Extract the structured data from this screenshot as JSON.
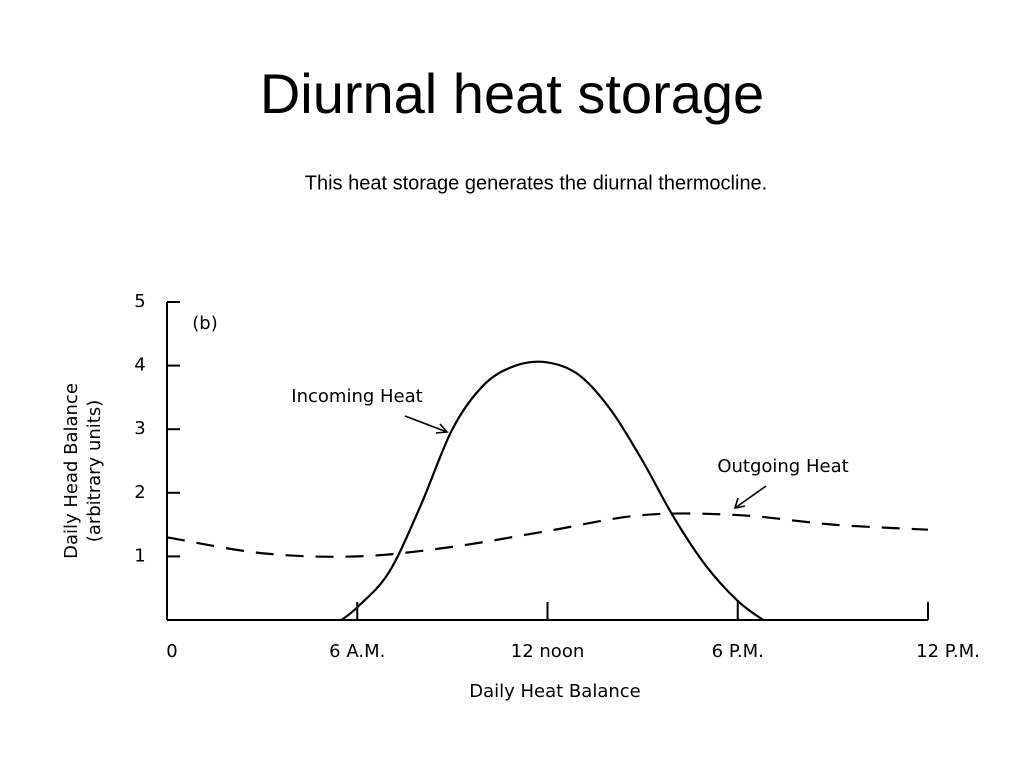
{
  "chart_data": {
    "type": "line",
    "title": "Diurnal heat storage",
    "subtitle": "This heat storage generates the diurnal thermocline.",
    "xlabel": "Daily Heat Balance",
    "ylabel": [
      "Daily Head Balance",
      "(arbitrary units)"
    ],
    "annotations": [
      "(b)",
      "Incoming Heat",
      "Outgoing Heat"
    ],
    "xlim": [
      0,
      24
    ],
    "xticks": [
      0,
      {
        "value": 6,
        "label": "6 A.M."
      },
      {
        "value": 12,
        "label": "12 noon"
      },
      {
        "value": 18,
        "label": "6 P.M."
      },
      {
        "value": 24,
        "label": "12 P.M."
      }
    ],
    "ylim": [
      0,
      5
    ],
    "yticks": [
      1,
      2,
      3,
      4,
      5
    ],
    "series": [
      {
        "name": "Incoming Heat",
        "color": "#000000",
        "style": "solid",
        "x": [
          5.5,
          6,
          7,
          8,
          9,
          10,
          11,
          12,
          13,
          14,
          15,
          16,
          17,
          18,
          18.8
        ],
        "values": [
          0,
          0.2,
          0.75,
          1.8,
          3.0,
          3.7,
          4.0,
          4.05,
          3.85,
          3.3,
          2.5,
          1.6,
          0.85,
          0.3,
          0
        ]
      },
      {
        "name": "Outgoing Heat",
        "color": "#000000",
        "style": "dashed",
        "x": [
          0,
          3,
          6,
          9,
          12,
          15,
          18,
          21,
          24
        ],
        "values": [
          1.3,
          1.05,
          1.0,
          1.15,
          1.4,
          1.65,
          1.65,
          1.5,
          1.42
        ]
      }
    ]
  }
}
